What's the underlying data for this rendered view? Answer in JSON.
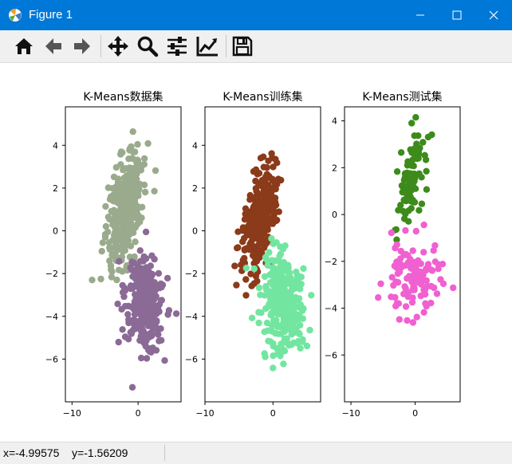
{
  "window": {
    "title": "Figure 1",
    "controls": [
      "minimize-icon",
      "maximize-icon",
      "close-icon"
    ],
    "titlebar_color": "#0078d7"
  },
  "toolbar": {
    "buttons": [
      "home-icon",
      "back-arrow-icon",
      "forward-arrow-icon",
      "pan-icon",
      "zoom-icon",
      "subplots-config-icon",
      "edit-axes-icon",
      "save-icon"
    ]
  },
  "status": {
    "x_text": "x=-4.99575",
    "y_text": "y=-1.56209"
  },
  "chart_data": [
    {
      "type": "scatter",
      "title": "K-Means数据集",
      "xlim": [
        -11,
        6.5
      ],
      "ylim": [
        -8,
        5.8
      ],
      "xticks": [
        -10,
        0
      ],
      "yticks": [
        4,
        2,
        0,
        -2,
        -4,
        -6
      ],
      "series": [
        {
          "color": "#9aaa8c",
          "center": [
            -2,
            1
          ],
          "count": 320,
          "spread": [
            2.8,
            2.2
          ],
          "rotate": 0.78
        },
        {
          "color": "#8b6a96",
          "center": [
            1,
            -3.5
          ],
          "count": 300,
          "spread": [
            2.5,
            2.3
          ],
          "rotate": -0.25
        }
      ]
    },
    {
      "type": "scatter",
      "title": "K-Means训练集",
      "xlim": [
        -10,
        7
      ],
      "ylim": [
        -8,
        5.8
      ],
      "xticks": [
        -10,
        0
      ],
      "yticks": [
        4,
        2,
        0,
        -2,
        -4,
        -6
      ],
      "series": [
        {
          "color": "#8b3a1a",
          "center": [
            -2,
            0.5
          ],
          "count": 280,
          "spread": [
            2.6,
            2.1
          ],
          "rotate": 0.78
        },
        {
          "color": "#72e6a0",
          "center": [
            1.5,
            -3.3
          ],
          "count": 300,
          "spread": [
            2.5,
            2.4
          ],
          "rotate": -0.25
        }
      ]
    },
    {
      "type": "scatter",
      "title": "K-Means测试集",
      "xlim": [
        -11,
        7
      ],
      "ylim": [
        -8,
        4.6
      ],
      "xticks": [
        -10,
        0
      ],
      "yticks": [
        4,
        2,
        0,
        -2,
        -4,
        -6
      ],
      "series": [
        {
          "color": "#3d8b1a",
          "center": [
            -0.5,
            1.5
          ],
          "count": 90,
          "spread": [
            2.2,
            1.6
          ],
          "rotate": 0.7
        },
        {
          "color": "#f060d0",
          "center": [
            -0.5,
            -2.8
          ],
          "count": 110,
          "spread": [
            3.6,
            1.8
          ],
          "rotate": 0.0
        }
      ]
    }
  ]
}
